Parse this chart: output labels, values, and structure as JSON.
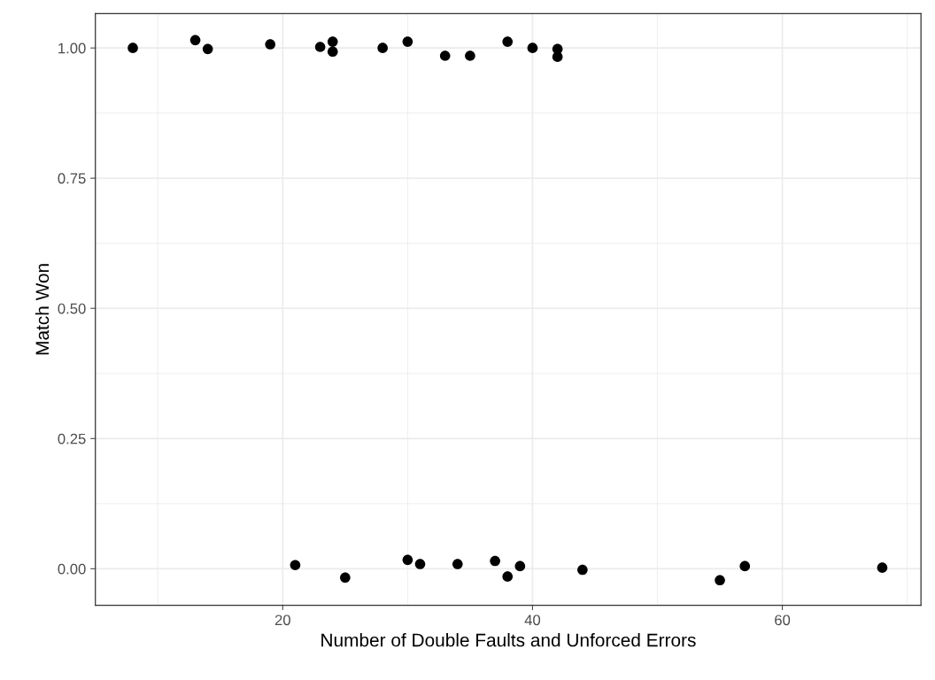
{
  "chart_data": {
    "type": "scatter",
    "xlabel": "Number of Double Faults and Unforced Errors",
    "ylabel": "Match Won",
    "x": [
      8,
      13,
      14,
      19,
      23,
      24,
      24,
      28,
      30,
      33,
      35,
      38,
      40,
      42,
      42,
      21,
      25,
      30,
      31,
      34,
      37,
      38,
      39,
      44,
      55,
      57,
      68
    ],
    "series": [
      {
        "color": "#000000",
        "values": [
          1.0,
          1.015,
          0.998,
          1.007,
          1.002,
          1.012,
          0.993,
          1.0,
          1.012,
          0.985,
          0.985,
          1.012,
          1.0,
          0.998,
          0.983,
          0.007,
          -0.017,
          0.017,
          0.009,
          0.009,
          0.015,
          -0.015,
          0.005,
          -0.002,
          -0.022,
          0.005,
          0.002
        ]
      }
    ],
    "xlim": [
      5.0,
      71.1
    ],
    "ylim": [
      -0.07,
      1.066
    ],
    "xticks": [
      20,
      40,
      60
    ],
    "yticks": [
      {
        "value": 0,
        "label": "0.00"
      },
      {
        "value": 0.25,
        "label": "0.25"
      },
      {
        "value": 0.5,
        "label": "0.50"
      },
      {
        "value": 0.75,
        "label": "0.75"
      },
      {
        "value": 1,
        "label": "1.00"
      }
    ],
    "grid": true,
    "marker": "circle",
    "legend": false
  }
}
